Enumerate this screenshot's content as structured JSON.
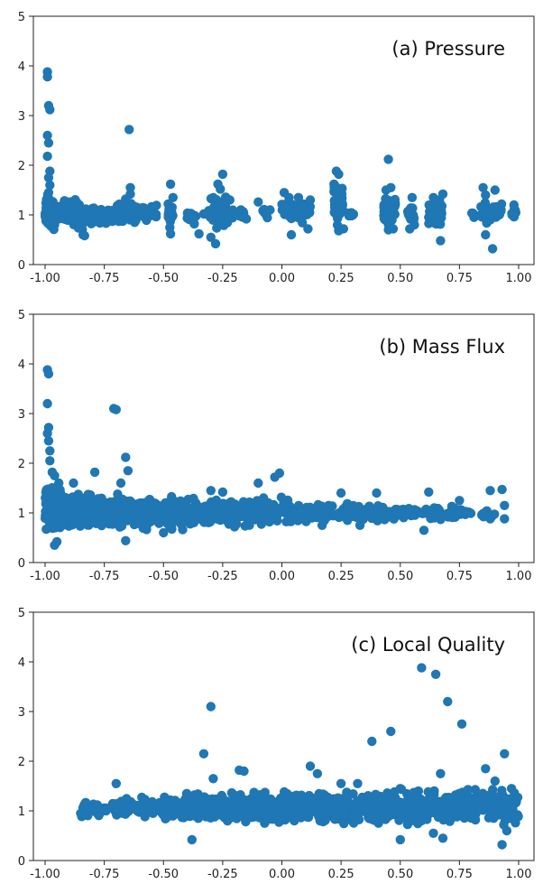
{
  "chart_data": [
    {
      "type": "scatter",
      "annotation": "(a) Pressure",
      "xlim": [
        -1.0,
        1.0
      ],
      "ylim": [
        0,
        5
      ],
      "xticks": [
        "-1.00",
        "-0.75",
        "-0.50",
        "-0.25",
        "0.00",
        "0.25",
        "0.50",
        "0.75",
        "1.00"
      ],
      "yticks": [
        "0",
        "1",
        "2",
        "3",
        "4",
        "5"
      ],
      "grid": false,
      "marker_color": "#1f77b4",
      "points": [
        [
          -0.99,
          3.88
        ],
        [
          -0.99,
          3.78
        ],
        [
          -0.985,
          3.2
        ],
        [
          -0.98,
          3.12
        ],
        [
          -0.99,
          2.6
        ],
        [
          -0.985,
          2.45
        ],
        [
          -0.99,
          2.18
        ],
        [
          -0.98,
          1.88
        ],
        [
          -0.985,
          1.75
        ],
        [
          -0.98,
          1.6
        ],
        [
          -0.985,
          1.45
        ],
        [
          -0.645,
          2.72
        ],
        [
          -0.64,
          1.42
        ],
        [
          -0.64,
          1.55
        ],
        [
          -0.66,
          1.32
        ],
        [
          -0.47,
          1.62
        ],
        [
          -0.46,
          1.35
        ],
        [
          -0.47,
          0.62
        ],
        [
          -0.48,
          1.22
        ],
        [
          -0.35,
          0.62
        ],
        [
          -0.37,
          0.82
        ],
        [
          -0.33,
          1.02
        ],
        [
          -0.25,
          1.82
        ],
        [
          -0.27,
          1.62
        ],
        [
          -0.29,
          1.35
        ],
        [
          -0.3,
          0.55
        ],
        [
          -0.28,
          0.42
        ],
        [
          -0.26,
          1.52
        ],
        [
          -0.22,
          1.3
        ],
        [
          -0.1,
          1.26
        ],
        [
          -0.15,
          0.92
        ],
        [
          -0.05,
          1.1
        ],
        [
          0.01,
          1.45
        ],
        [
          0.03,
          1.35
        ],
        [
          0.07,
          1.35
        ],
        [
          0.09,
          1.22
        ],
        [
          0.11,
          0.72
        ],
        [
          0.04,
          0.6
        ],
        [
          0.12,
          1.3
        ],
        [
          0.23,
          1.88
        ],
        [
          0.24,
          1.82
        ],
        [
          0.22,
          1.62
        ],
        [
          0.235,
          1.5
        ],
        [
          0.24,
          0.68
        ],
        [
          0.26,
          0.72
        ],
        [
          0.3,
          1.0
        ],
        [
          0.45,
          2.12
        ],
        [
          0.46,
          1.55
        ],
        [
          0.44,
          1.5
        ],
        [
          0.45,
          0.7
        ],
        [
          0.47,
          0.72
        ],
        [
          0.55,
          1.35
        ],
        [
          0.54,
          0.72
        ],
        [
          0.56,
          0.8
        ],
        [
          0.64,
          1.35
        ],
        [
          0.68,
          1.42
        ],
        [
          0.67,
          0.48
        ],
        [
          0.62,
          0.95
        ],
        [
          0.81,
          1.0
        ],
        [
          0.85,
          1.55
        ],
        [
          0.86,
          1.4
        ],
        [
          0.88,
          0.9
        ],
        [
          0.89,
          0.32
        ],
        [
          0.9,
          1.5
        ],
        [
          0.92,
          1.15
        ],
        [
          0.86,
          0.6
        ],
        [
          0.98,
          1.2
        ]
      ],
      "bands": [
        [
          -1.0,
          -0.96,
          0.58,
          1.55,
          80
        ],
        [
          -0.96,
          -0.85,
          0.72,
          1.35,
          100
        ],
        [
          -0.86,
          -0.83,
          0.42,
          1.22,
          16
        ],
        [
          -0.83,
          -0.7,
          0.78,
          1.2,
          100
        ],
        [
          -0.7,
          -0.61,
          0.75,
          1.32,
          90
        ],
        [
          -0.61,
          -0.53,
          0.82,
          1.22,
          40
        ],
        [
          -0.48,
          -0.46,
          0.72,
          1.4,
          18
        ],
        [
          -0.4,
          -0.36,
          0.85,
          1.1,
          14
        ],
        [
          -0.31,
          -0.23,
          0.62,
          1.45,
          60
        ],
        [
          -0.22,
          -0.16,
          0.9,
          1.15,
          22
        ],
        [
          -0.08,
          -0.06,
          0.85,
          1.2,
          12
        ],
        [
          0.0,
          0.12,
          0.8,
          1.35,
          55
        ],
        [
          0.22,
          0.26,
          0.72,
          1.75,
          40
        ],
        [
          0.28,
          0.31,
          0.95,
          1.08,
          8
        ],
        [
          0.43,
          0.48,
          0.72,
          1.5,
          40
        ],
        [
          0.53,
          0.56,
          0.72,
          1.3,
          20
        ],
        [
          0.62,
          0.68,
          0.72,
          1.4,
          30
        ],
        [
          0.8,
          0.82,
          0.9,
          1.1,
          8
        ],
        [
          0.84,
          0.87,
          0.7,
          1.4,
          16
        ],
        [
          0.88,
          0.93,
          0.85,
          1.3,
          18
        ],
        [
          0.97,
          0.99,
          0.95,
          1.15,
          8
        ]
      ]
    },
    {
      "type": "scatter",
      "annotation": "(b) Mass Flux",
      "xlim": [
        -1.0,
        1.0
      ],
      "ylim": [
        0,
        5
      ],
      "xticks": [
        "-1.00",
        "-0.75",
        "-0.50",
        "-0.25",
        "0.00",
        "0.25",
        "0.50",
        "0.75",
        "1.00"
      ],
      "yticks": [
        "0",
        "1",
        "2",
        "3",
        "4",
        "5"
      ],
      "grid": false,
      "marker_color": "#1f77b4",
      "points": [
        [
          -0.99,
          3.88
        ],
        [
          -0.985,
          3.8
        ],
        [
          -0.99,
          3.2
        ],
        [
          -0.985,
          2.72
        ],
        [
          -0.99,
          2.6
        ],
        [
          -0.985,
          2.45
        ],
        [
          -0.98,
          2.25
        ],
        [
          -0.98,
          2.05
        ],
        [
          -0.97,
          1.82
        ],
        [
          -0.96,
          1.75
        ],
        [
          -0.71,
          3.1
        ],
        [
          -0.7,
          3.08
        ],
        [
          -0.66,
          2.12
        ],
        [
          -0.65,
          1.85
        ],
        [
          -0.68,
          1.6
        ],
        [
          -0.79,
          1.82
        ],
        [
          -0.88,
          1.6
        ],
        [
          -0.96,
          0.35
        ],
        [
          -0.95,
          0.42
        ],
        [
          -0.66,
          0.44
        ],
        [
          -0.3,
          1.45
        ],
        [
          -0.25,
          1.42
        ],
        [
          -0.1,
          1.6
        ],
        [
          -0.03,
          1.72
        ],
        [
          -0.01,
          1.8
        ],
        [
          0.25,
          1.4
        ],
        [
          0.4,
          1.4
        ],
        [
          0.62,
          1.42
        ],
        [
          0.75,
          1.25
        ],
        [
          0.88,
          1.45
        ],
        [
          0.93,
          1.47
        ],
        [
          0.94,
          1.15
        ],
        [
          0.94,
          0.88
        ],
        [
          0.88,
          0.88
        ],
        [
          0.6,
          0.65
        ],
        [
          0.33,
          0.75
        ],
        [
          0.17,
          0.75
        ],
        [
          -0.5,
          0.6
        ],
        [
          -0.2,
          0.72
        ]
      ],
      "bands": [
        [
          -1.0,
          -0.93,
          0.5,
          1.7,
          160
        ],
        [
          -0.93,
          -0.8,
          0.6,
          1.5,
          170
        ],
        [
          -0.8,
          -0.62,
          0.6,
          1.45,
          170
        ],
        [
          -0.62,
          -0.4,
          0.6,
          1.4,
          150
        ],
        [
          -0.4,
          -0.2,
          0.65,
          1.35,
          120
        ],
        [
          -0.2,
          0.05,
          0.7,
          1.35,
          120
        ],
        [
          0.05,
          0.3,
          0.75,
          1.25,
          90
        ],
        [
          0.3,
          0.55,
          0.8,
          1.2,
          70
        ],
        [
          0.55,
          0.75,
          0.82,
          1.15,
          45
        ],
        [
          0.75,
          0.9,
          0.88,
          1.1,
          18
        ]
      ]
    },
    {
      "type": "scatter",
      "annotation": "(c) Local Quality",
      "xlim": [
        -1.0,
        1.0
      ],
      "ylim": [
        0,
        5
      ],
      "xticks": [
        "-1.00",
        "-0.75",
        "-0.50",
        "-0.25",
        "0.00",
        "0.25",
        "0.50",
        "0.75",
        "1.00"
      ],
      "yticks": [
        "0",
        "1",
        "2",
        "3",
        "4",
        "5"
      ],
      "grid": false,
      "marker_color": "#1f77b4",
      "points": [
        [
          -0.85,
          0.95
        ],
        [
          -0.8,
          1.0
        ],
        [
          -0.78,
          1.12
        ],
        [
          -0.7,
          1.55
        ],
        [
          -0.62,
          1.05
        ],
        [
          -0.33,
          2.15
        ],
        [
          -0.3,
          3.1
        ],
        [
          -0.29,
          1.65
        ],
        [
          -0.18,
          1.82
        ],
        [
          -0.16,
          1.8
        ],
        [
          -0.38,
          0.42
        ],
        [
          0.12,
          1.9
        ],
        [
          0.15,
          1.75
        ],
        [
          0.25,
          1.55
        ],
        [
          0.32,
          1.55
        ],
        [
          0.38,
          2.4
        ],
        [
          0.46,
          2.6
        ],
        [
          0.5,
          1.45
        ],
        [
          0.5,
          0.42
        ],
        [
          0.59,
          3.88
        ],
        [
          0.65,
          3.75
        ],
        [
          0.7,
          3.2
        ],
        [
          0.76,
          2.75
        ],
        [
          0.67,
          1.75
        ],
        [
          0.64,
          0.55
        ],
        [
          0.68,
          0.45
        ],
        [
          0.86,
          1.85
        ],
        [
          0.94,
          2.15
        ],
        [
          0.9,
          1.6
        ],
        [
          0.93,
          0.32
        ],
        [
          0.97,
          1.45
        ],
        [
          0.95,
          0.6
        ],
        [
          0.99,
          1.2
        ]
      ],
      "bands": [
        [
          -0.85,
          -0.7,
          0.85,
          1.25,
          25
        ],
        [
          -0.7,
          -0.5,
          0.8,
          1.3,
          80
        ],
        [
          -0.5,
          -0.3,
          0.72,
          1.4,
          130
        ],
        [
          -0.3,
          -0.1,
          0.7,
          1.45,
          160
        ],
        [
          -0.1,
          0.1,
          0.7,
          1.45,
          170
        ],
        [
          0.1,
          0.3,
          0.68,
          1.45,
          170
        ],
        [
          0.3,
          0.5,
          0.68,
          1.45,
          160
        ],
        [
          0.5,
          0.7,
          0.68,
          1.5,
          150
        ],
        [
          0.7,
          0.9,
          0.68,
          1.5,
          130
        ],
        [
          0.9,
          1.0,
          0.65,
          1.5,
          60
        ]
      ]
    }
  ]
}
